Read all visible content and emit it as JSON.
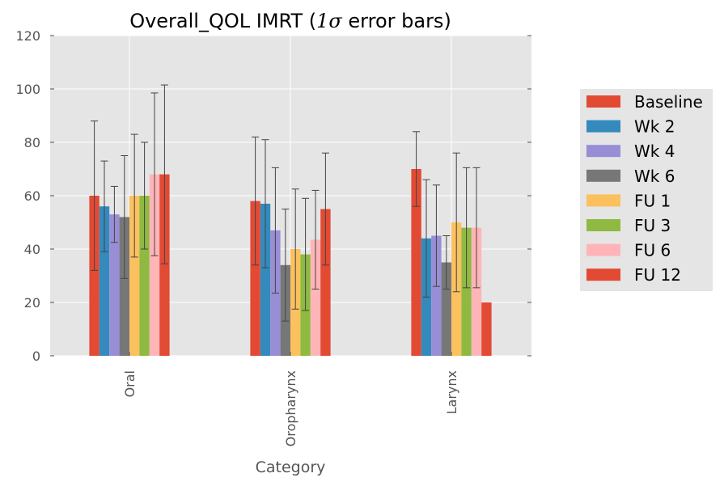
{
  "chart_data": {
    "type": "bar",
    "title_main": "Overall_QOL IMRT (",
    "title_sigma": "1σ",
    "title_rest": " error bars)",
    "xlabel": "Category",
    "ylabel": "",
    "ylim": [
      0,
      120
    ],
    "yticks": [
      "0",
      "20",
      "40",
      "60",
      "80",
      "100",
      "120"
    ],
    "categories": [
      "Oral",
      "Oropharynx",
      "Larynx"
    ],
    "grid": true,
    "legend_position": "right",
    "series": [
      {
        "name": "Baseline",
        "color": "#E24A33",
        "values": [
          60,
          58,
          70
        ],
        "errors": [
          28,
          24,
          14
        ]
      },
      {
        "name": "Wk 2",
        "color": "#348ABD",
        "values": [
          56,
          57,
          44
        ],
        "errors": [
          17,
          24,
          22
        ]
      },
      {
        "name": "Wk 4",
        "color": "#988ED5",
        "values": [
          53,
          47,
          45
        ],
        "errors": [
          10.5,
          23.5,
          19
        ]
      },
      {
        "name": "Wk 6",
        "color": "#777777",
        "values": [
          52,
          34,
          35
        ],
        "errors": [
          23,
          21,
          10
        ]
      },
      {
        "name": "FU 1",
        "color": "#FBC15E",
        "values": [
          60,
          40,
          50
        ],
        "errors": [
          23,
          22.5,
          26
        ]
      },
      {
        "name": "FU 3",
        "color": "#8EBA42",
        "values": [
          60,
          38,
          48
        ],
        "errors": [
          20,
          21,
          22.5
        ]
      },
      {
        "name": "FU 6",
        "color": "#FFB5B8",
        "values": [
          68,
          43.5,
          48
        ],
        "errors": [
          30.5,
          18.5,
          22.5
        ]
      },
      {
        "name": "FU 12",
        "color": "#E24A33",
        "values": [
          68,
          55,
          20
        ],
        "errors": [
          33.5,
          21,
          null
        ]
      }
    ]
  }
}
